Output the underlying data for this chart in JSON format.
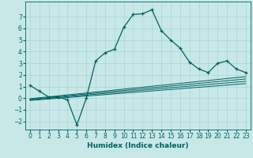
{
  "xlabel": "Humidex (Indice chaleur)",
  "background_color": "#c8e8e8",
  "line_color": "#006060",
  "grid_color": "#a8d4d4",
  "xlim": [
    -0.5,
    23.5
  ],
  "ylim": [
    -2.7,
    8.3
  ],
  "xticks": [
    0,
    1,
    2,
    3,
    4,
    5,
    6,
    7,
    8,
    9,
    10,
    11,
    12,
    13,
    14,
    15,
    16,
    17,
    18,
    19,
    20,
    21,
    22,
    23
  ],
  "yticks": [
    -2,
    -1,
    0,
    1,
    2,
    3,
    4,
    5,
    6,
    7
  ],
  "main_line_x": [
    0,
    1,
    2,
    3,
    4,
    5,
    6,
    7,
    8,
    9,
    10,
    11,
    12,
    13,
    14,
    15,
    16,
    17,
    18,
    19,
    20,
    21,
    22,
    23
  ],
  "main_line_y": [
    1.1,
    0.6,
    0.1,
    0.1,
    -0.15,
    -2.3,
    0.0,
    3.2,
    3.9,
    4.2,
    6.1,
    7.2,
    7.25,
    7.6,
    5.8,
    5.0,
    4.3,
    3.1,
    2.5,
    2.2,
    3.0,
    3.2,
    2.5,
    2.2
  ],
  "flat_lines": [
    {
      "x": [
        0,
        23
      ],
      "y": [
        -0.05,
        1.85
      ]
    },
    {
      "x": [
        0,
        23
      ],
      "y": [
        -0.1,
        1.65
      ]
    },
    {
      "x": [
        0,
        23
      ],
      "y": [
        -0.15,
        1.45
      ]
    },
    {
      "x": [
        0,
        23
      ],
      "y": [
        -0.2,
        1.25
      ]
    }
  ],
  "tick_fontsize": 5.5,
  "xlabel_fontsize": 6.5
}
